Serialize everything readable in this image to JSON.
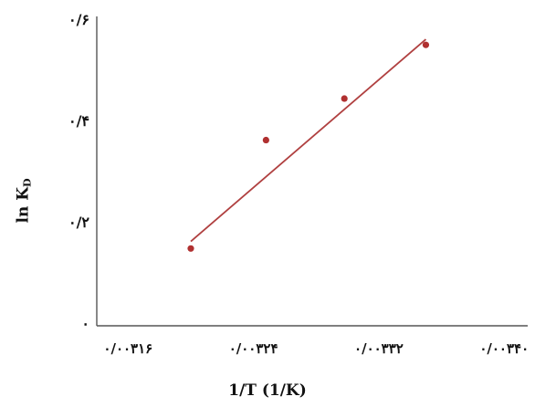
{
  "chart_data": {
    "type": "scatter",
    "xlabel": "1/T (1/K)",
    "ylabel": {
      "main": "ln K",
      "subscript": "D"
    },
    "x_ticks": [
      {
        "value": 0.00316,
        "label": "۰/۰۰۳۱۶"
      },
      {
        "value": 0.00324,
        "label": "۰/۰۰۳۲۴"
      },
      {
        "value": 0.00332,
        "label": "۰/۰۰۳۳۲"
      },
      {
        "value": 0.0034,
        "label": "۰/۰۰۳۴۰"
      }
    ],
    "y_ticks": [
      {
        "value": 0,
        "label": "۰"
      },
      {
        "value": 0.2,
        "label": "۰/۲"
      },
      {
        "value": 0.4,
        "label": "۰/۴"
      },
      {
        "value": 0.6,
        "label": "۰/۶"
      }
    ],
    "xlim": [
      0.00314,
      0.003415
    ],
    "ylim": [
      0,
      0.6
    ],
    "points": [
      {
        "x": 0.0032,
        "y": 0.149
      },
      {
        "x": 0.003248,
        "y": 0.363
      },
      {
        "x": 0.003298,
        "y": 0.445
      },
      {
        "x": 0.00335,
        "y": 0.551
      }
    ],
    "fit_line": {
      "x1": 0.0032,
      "y1": 0.163,
      "x2": 0.00335,
      "y2": 0.562
    },
    "grid": false,
    "colors": {
      "line": "#b04040",
      "points": "#b03030",
      "axes": "#555555"
    }
  }
}
